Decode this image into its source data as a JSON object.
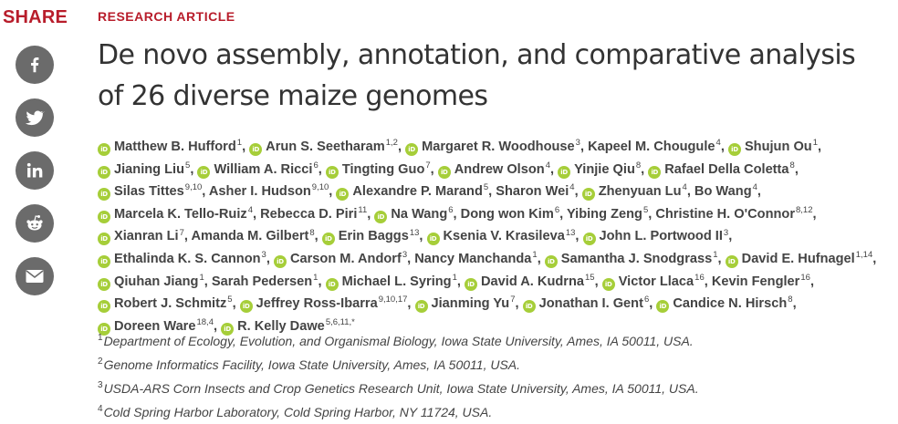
{
  "share": {
    "title": "SHARE",
    "buttons": [
      {
        "icon": "facebook-icon",
        "name": "share-facebook-button"
      },
      {
        "icon": "twitter-icon",
        "name": "share-twitter-button"
      },
      {
        "icon": "linkedin-icon",
        "name": "share-linkedin-button"
      },
      {
        "icon": "reddit-icon",
        "name": "share-reddit-button"
      },
      {
        "icon": "email-icon",
        "name": "share-email-button"
      }
    ]
  },
  "article": {
    "kicker": "RESEARCH ARTICLE",
    "title": "De novo assembly, annotation, and comparative analysis of 26 diverse maize genomes",
    "orcid_label": "iD",
    "authors": [
      {
        "name": "Matthew B. Hufford",
        "aff": "1",
        "orcid": true
      },
      {
        "name": "Arun S. Seetharam",
        "aff": "1,2",
        "orcid": true
      },
      {
        "name": "Margaret R. Woodhouse",
        "aff": "3",
        "orcid": true
      },
      {
        "name": "Kapeel M. Chougule",
        "aff": "4",
        "orcid": false
      },
      {
        "name": "Shujun Ou",
        "aff": "1",
        "orcid": true
      },
      {
        "name": "Jianing Liu",
        "aff": "5",
        "orcid": true
      },
      {
        "name": "William A. Ricci",
        "aff": "6",
        "orcid": true
      },
      {
        "name": "Tingting Guo",
        "aff": "7",
        "orcid": true
      },
      {
        "name": "Andrew Olson",
        "aff": "4",
        "orcid": true
      },
      {
        "name": "Yinjie Qiu",
        "aff": "8",
        "orcid": true
      },
      {
        "name": "Rafael Della Coletta",
        "aff": "8",
        "orcid": true
      },
      {
        "name": "Silas Tittes",
        "aff": "9,10",
        "orcid": true
      },
      {
        "name": "Asher I. Hudson",
        "aff": "9,10",
        "orcid": false
      },
      {
        "name": "Alexandre P. Marand",
        "aff": "5",
        "orcid": true
      },
      {
        "name": "Sharon Wei",
        "aff": "4",
        "orcid": false
      },
      {
        "name": "Zhenyuan Lu",
        "aff": "4",
        "orcid": true
      },
      {
        "name": "Bo Wang",
        "aff": "4",
        "orcid": false
      },
      {
        "name": "Marcela K. Tello-Ruiz",
        "aff": "4",
        "orcid": true
      },
      {
        "name": "Rebecca D. Piri",
        "aff": "11",
        "orcid": false
      },
      {
        "name": "Na Wang",
        "aff": "6",
        "orcid": true
      },
      {
        "name": "Dong won Kim",
        "aff": "6",
        "orcid": false
      },
      {
        "name": "Yibing Zeng",
        "aff": "5",
        "orcid": false
      },
      {
        "name": "Christine H. O'Connor",
        "aff": "8,12",
        "orcid": false
      },
      {
        "name": "Xianran Li",
        "aff": "7",
        "orcid": true
      },
      {
        "name": "Amanda M. Gilbert",
        "aff": "8",
        "orcid": false
      },
      {
        "name": "Erin Baggs",
        "aff": "13",
        "orcid": true
      },
      {
        "name": "Ksenia V. Krasileva",
        "aff": "13",
        "orcid": true
      },
      {
        "name": "John L. Portwood II",
        "aff": "3",
        "orcid": true
      },
      {
        "name": "Ethalinda K. S. Cannon",
        "aff": "3",
        "orcid": true
      },
      {
        "name": "Carson M. Andorf",
        "aff": "3",
        "orcid": true
      },
      {
        "name": "Nancy Manchanda",
        "aff": "1",
        "orcid": false
      },
      {
        "name": "Samantha J. Snodgrass",
        "aff": "1",
        "orcid": true
      },
      {
        "name": "David E. Hufnagel",
        "aff": "1,14",
        "orcid": true
      },
      {
        "name": "Qiuhan Jiang",
        "aff": "1",
        "orcid": true
      },
      {
        "name": "Sarah Pedersen",
        "aff": "1",
        "orcid": false
      },
      {
        "name": "Michael L. Syring",
        "aff": "1",
        "orcid": true
      },
      {
        "name": "David A. Kudrna",
        "aff": "15",
        "orcid": true
      },
      {
        "name": "Victor Llaca",
        "aff": "16",
        "orcid": true
      },
      {
        "name": "Kevin Fengler",
        "aff": "16",
        "orcid": false
      },
      {
        "name": "Robert J. Schmitz",
        "aff": "5",
        "orcid": true
      },
      {
        "name": "Jeffrey Ross-Ibarra",
        "aff": "9,10,17",
        "orcid": true
      },
      {
        "name": "Jianming Yu",
        "aff": "7",
        "orcid": true
      },
      {
        "name": "Jonathan I. Gent",
        "aff": "6",
        "orcid": true
      },
      {
        "name": "Candice N. Hirsch",
        "aff": "8",
        "orcid": true
      },
      {
        "name": "Doreen Ware",
        "aff": "18,4",
        "orcid": true
      },
      {
        "name": "R. Kelly Dawe",
        "aff": "5,6,11,*",
        "orcid": true
      }
    ],
    "affiliations": [
      {
        "num": "1",
        "text": "Department of Ecology, Evolution, and Organismal Biology, Iowa State University, Ames, IA 50011, USA."
      },
      {
        "num": "2",
        "text": "Genome Informatics Facility, Iowa State University, Ames, IA 50011, USA."
      },
      {
        "num": "3",
        "text": "USDA-ARS Corn Insects and Crop Genetics Research Unit, Iowa State University, Ames, IA 50011, USA."
      },
      {
        "num": "4",
        "text": "Cold Spring Harbor Laboratory, Cold Spring Harbor, NY 11724, USA."
      }
    ]
  },
  "colors": {
    "accent": "#b81d2b",
    "share_button": "#6b6b6b",
    "orcid": "#a6ce39",
    "text": "#333333"
  }
}
